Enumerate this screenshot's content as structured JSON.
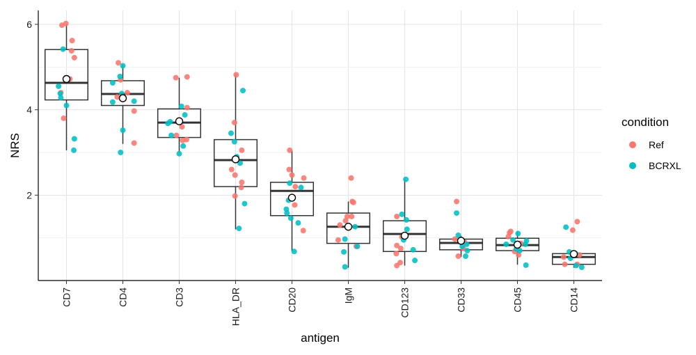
{
  "chart_data": {
    "type": "boxplot",
    "xlabel": "antigen",
    "ylabel": "NRS",
    "ylim": [
      0,
      6.2
    ],
    "yticks": [
      2,
      4,
      6
    ],
    "grid": true,
    "legend": {
      "title": "condition",
      "position": "right",
      "entries": [
        {
          "name": "Ref",
          "color": "#F8766D"
        },
        {
          "name": "BCRXL",
          "color": "#00BFC4"
        }
      ]
    },
    "categories": [
      "CD7",
      "CD4",
      "CD3",
      "HLA_DR",
      "CD20",
      "IgM",
      "CD123",
      "CD33",
      "CD45",
      "CD14"
    ],
    "boxes": [
      {
        "q1": 4.23,
        "median": 4.63,
        "q3": 5.41,
        "whisker_low": 3.05,
        "whisker_high": 6.0,
        "mean": 4.72
      },
      {
        "q1": 4.1,
        "median": 4.37,
        "q3": 4.68,
        "whisker_low": 3.2,
        "whisker_high": 5.05,
        "mean": 4.27
      },
      {
        "q1": 3.35,
        "median": 3.7,
        "q3": 4.02,
        "whisker_low": 3.0,
        "whisker_high": 4.75,
        "mean": 3.73
      },
      {
        "q1": 2.2,
        "median": 2.82,
        "q3": 3.3,
        "whisker_low": 1.2,
        "whisker_high": 4.82,
        "mean": 2.84
      },
      {
        "q1": 1.52,
        "median": 2.1,
        "q3": 2.3,
        "whisker_low": 0.68,
        "whisker_high": 3.05,
        "mean": 1.94
      },
      {
        "q1": 0.87,
        "median": 1.26,
        "q3": 1.58,
        "whisker_low": 0.3,
        "whisker_high": 1.85,
        "mean": 1.26
      },
      {
        "q1": 0.68,
        "median": 1.09,
        "q3": 1.4,
        "whisker_low": 0.35,
        "whisker_high": 2.37,
        "mean": 1.05
      },
      {
        "q1": 0.72,
        "median": 0.88,
        "q3": 0.97,
        "whisker_low": 0.55,
        "whisker_high": 1.05,
        "mean": 0.93
      },
      {
        "q1": 0.7,
        "median": 0.83,
        "q3": 0.99,
        "whisker_low": 0.37,
        "whisker_high": 1.15,
        "mean": 0.84
      },
      {
        "q1": 0.38,
        "median": 0.55,
        "q3": 0.63,
        "whisker_low": 0.3,
        "whisker_high": 0.7,
        "mean": 0.62
      }
    ],
    "points": [
      {
        "c": 0,
        "dx": -0.08,
        "y": 5.98,
        "g": "Ref"
      },
      {
        "c": 0,
        "dx": -0.01,
        "y": 6.02,
        "g": "Ref"
      },
      {
        "c": 0,
        "dx": 0.1,
        "y": 5.62,
        "g": "Ref"
      },
      {
        "c": 0,
        "dx": 0.09,
        "y": 5.38,
        "g": "Ref"
      },
      {
        "c": 0,
        "dx": 0.14,
        "y": 5.22,
        "g": "Ref"
      },
      {
        "c": 0,
        "dx": 0.06,
        "y": 4.72,
        "g": "Ref"
      },
      {
        "c": 0,
        "dx": -0.05,
        "y": 3.8,
        "g": "Ref"
      },
      {
        "c": 0,
        "dx": -0.1,
        "y": 4.4,
        "g": "Ref"
      },
      {
        "c": 0,
        "dx": -0.06,
        "y": 5.42,
        "g": "BCRXL"
      },
      {
        "c": 0,
        "dx": -0.14,
        "y": 4.55,
        "g": "BCRXL"
      },
      {
        "c": 0,
        "dx": -0.11,
        "y": 4.38,
        "g": "BCRXL"
      },
      {
        "c": 0,
        "dx": -0.1,
        "y": 4.28,
        "g": "BCRXL"
      },
      {
        "c": 0,
        "dx": 0.0,
        "y": 4.1,
        "g": "BCRXL"
      },
      {
        "c": 0,
        "dx": 0.14,
        "y": 3.32,
        "g": "BCRXL"
      },
      {
        "c": 0,
        "dx": 0.13,
        "y": 3.05,
        "g": "BCRXL"
      },
      {
        "c": 1,
        "dx": -0.08,
        "y": 5.1,
        "g": "Ref"
      },
      {
        "c": 1,
        "dx": -0.04,
        "y": 4.7,
        "g": "Ref"
      },
      {
        "c": 1,
        "dx": 0.08,
        "y": 4.4,
        "g": "Ref"
      },
      {
        "c": 1,
        "dx": -0.1,
        "y": 4.3,
        "g": "Ref"
      },
      {
        "c": 1,
        "dx": 0.2,
        "y": 3.97,
        "g": "Ref"
      },
      {
        "c": 1,
        "dx": 0.2,
        "y": 3.22,
        "g": "Ref"
      },
      {
        "c": 1,
        "dx": -0.05,
        "y": 4.78,
        "g": "BCRXL"
      },
      {
        "c": 1,
        "dx": 0.0,
        "y": 5.03,
        "g": "BCRXL"
      },
      {
        "c": 1,
        "dx": -0.18,
        "y": 4.63,
        "g": "BCRXL"
      },
      {
        "c": 1,
        "dx": -0.02,
        "y": 4.38,
        "g": "BCRXL"
      },
      {
        "c": 1,
        "dx": -0.18,
        "y": 4.18,
        "g": "BCRXL"
      },
      {
        "c": 1,
        "dx": 0.2,
        "y": 4.2,
        "g": "BCRXL"
      },
      {
        "c": 1,
        "dx": 0.0,
        "y": 3.52,
        "g": "BCRXL"
      },
      {
        "c": 1,
        "dx": -0.04,
        "y": 3.0,
        "g": "BCRXL"
      },
      {
        "c": 2,
        "dx": -0.06,
        "y": 4.75,
        "g": "Ref"
      },
      {
        "c": 2,
        "dx": 0.14,
        "y": 4.77,
        "g": "Ref"
      },
      {
        "c": 2,
        "dx": 0.14,
        "y": 4.05,
        "g": "Ref"
      },
      {
        "c": 2,
        "dx": 0.05,
        "y": 3.6,
        "g": "Ref"
      },
      {
        "c": 2,
        "dx": -0.05,
        "y": 3.4,
        "g": "Ref"
      },
      {
        "c": 2,
        "dx": 0.13,
        "y": 3.3,
        "g": "Ref"
      },
      {
        "c": 2,
        "dx": 0.06,
        "y": 3.28,
        "g": "Ref"
      },
      {
        "c": 2,
        "dx": 0.04,
        "y": 4.08,
        "g": "BCRXL"
      },
      {
        "c": 2,
        "dx": 0.1,
        "y": 3.88,
        "g": "BCRXL"
      },
      {
        "c": 2,
        "dx": -0.16,
        "y": 3.72,
        "g": "BCRXL"
      },
      {
        "c": 2,
        "dx": -0.2,
        "y": 3.68,
        "g": "BCRXL"
      },
      {
        "c": 2,
        "dx": -0.14,
        "y": 3.4,
        "g": "BCRXL"
      },
      {
        "c": 2,
        "dx": 0.07,
        "y": 3.15,
        "g": "BCRXL"
      },
      {
        "c": 2,
        "dx": 0.0,
        "y": 2.97,
        "g": "BCRXL"
      },
      {
        "c": 3,
        "dx": 0.01,
        "y": 4.82,
        "g": "Ref"
      },
      {
        "c": 3,
        "dx": -0.02,
        "y": 3.7,
        "g": "Ref"
      },
      {
        "c": 3,
        "dx": 0.11,
        "y": 3.05,
        "g": "Ref"
      },
      {
        "c": 3,
        "dx": 0.0,
        "y": 2.82,
        "g": "Ref"
      },
      {
        "c": 3,
        "dx": -0.07,
        "y": 2.6,
        "g": "Ref"
      },
      {
        "c": 3,
        "dx": -0.01,
        "y": 2.47,
        "g": "Ref"
      },
      {
        "c": 3,
        "dx": 0.11,
        "y": 2.3,
        "g": "Ref"
      },
      {
        "c": 3,
        "dx": 0.1,
        "y": 2.18,
        "g": "Ref"
      },
      {
        "c": 3,
        "dx": -0.01,
        "y": 1.98,
        "g": "Ref"
      },
      {
        "c": 3,
        "dx": 0.13,
        "y": 4.45,
        "g": "BCRXL"
      },
      {
        "c": 3,
        "dx": -0.08,
        "y": 3.45,
        "g": "BCRXL"
      },
      {
        "c": 3,
        "dx": -0.02,
        "y": 3.25,
        "g": "BCRXL"
      },
      {
        "c": 3,
        "dx": 0.02,
        "y": 2.9,
        "g": "BCRXL"
      },
      {
        "c": 3,
        "dx": 0.08,
        "y": 2.75,
        "g": "BCRXL"
      },
      {
        "c": 3,
        "dx": 0.16,
        "y": 1.8,
        "g": "BCRXL"
      },
      {
        "c": 3,
        "dx": 0.06,
        "y": 1.22,
        "g": "BCRXL"
      },
      {
        "c": 4,
        "dx": -0.04,
        "y": 3.05,
        "g": "Ref"
      },
      {
        "c": 4,
        "dx": -0.05,
        "y": 2.6,
        "g": "Ref"
      },
      {
        "c": 4,
        "dx": 0.0,
        "y": 2.47,
        "g": "Ref"
      },
      {
        "c": 4,
        "dx": 0.21,
        "y": 2.4,
        "g": "Ref"
      },
      {
        "c": 4,
        "dx": 0.06,
        "y": 2.2,
        "g": "Ref"
      },
      {
        "c": 4,
        "dx": 0.05,
        "y": 1.77,
        "g": "Ref"
      },
      {
        "c": 4,
        "dx": 0.2,
        "y": 1.17,
        "g": "Ref"
      },
      {
        "c": 4,
        "dx": -0.04,
        "y": 2.28,
        "g": "BCRXL"
      },
      {
        "c": 4,
        "dx": 0.16,
        "y": 2.18,
        "g": "BCRXL"
      },
      {
        "c": 4,
        "dx": -0.06,
        "y": 1.88,
        "g": "BCRXL"
      },
      {
        "c": 4,
        "dx": -0.1,
        "y": 1.67,
        "g": "BCRXL"
      },
      {
        "c": 4,
        "dx": -0.09,
        "y": 1.58,
        "g": "BCRXL"
      },
      {
        "c": 4,
        "dx": -0.02,
        "y": 1.46,
        "g": "BCRXL"
      },
      {
        "c": 4,
        "dx": 0.11,
        "y": 1.35,
        "g": "BCRXL"
      },
      {
        "c": 4,
        "dx": 0.04,
        "y": 0.68,
        "g": "BCRXL"
      },
      {
        "c": 5,
        "dx": 0.05,
        "y": 2.4,
        "g": "Ref"
      },
      {
        "c": 5,
        "dx": 0.07,
        "y": 1.85,
        "g": "Ref"
      },
      {
        "c": 5,
        "dx": 0.09,
        "y": 1.83,
        "g": "Ref"
      },
      {
        "c": 5,
        "dx": -0.02,
        "y": 1.5,
        "g": "Ref"
      },
      {
        "c": 5,
        "dx": 0.06,
        "y": 1.5,
        "g": "Ref"
      },
      {
        "c": 5,
        "dx": -0.05,
        "y": 1.4,
        "g": "Ref"
      },
      {
        "c": 5,
        "dx": -0.15,
        "y": 1.3,
        "g": "Ref"
      },
      {
        "c": 5,
        "dx": -0.18,
        "y": 0.95,
        "g": "Ref"
      },
      {
        "c": 5,
        "dx": 0.14,
        "y": 0.8,
        "g": "Ref"
      },
      {
        "c": 5,
        "dx": 0.12,
        "y": 1.26,
        "g": "BCRXL"
      },
      {
        "c": 5,
        "dx": -0.06,
        "y": 0.97,
        "g": "BCRXL"
      },
      {
        "c": 5,
        "dx": 0.16,
        "y": 0.8,
        "g": "BCRXL"
      },
      {
        "c": 5,
        "dx": -0.08,
        "y": 0.67,
        "g": "BCRXL"
      },
      {
        "c": 5,
        "dx": -0.06,
        "y": 0.32,
        "g": "BCRXL"
      },
      {
        "c": 6,
        "dx": -0.14,
        "y": 1.5,
        "g": "Ref"
      },
      {
        "c": 6,
        "dx": -0.05,
        "y": 1.02,
        "g": "Ref"
      },
      {
        "c": 6,
        "dx": -0.14,
        "y": 0.82,
        "g": "Ref"
      },
      {
        "c": 6,
        "dx": -0.07,
        "y": 0.75,
        "g": "Ref"
      },
      {
        "c": 6,
        "dx": -0.15,
        "y": 0.63,
        "g": "Ref"
      },
      {
        "c": 6,
        "dx": -0.08,
        "y": 0.42,
        "g": "Ref"
      },
      {
        "c": 6,
        "dx": -0.14,
        "y": 0.35,
        "g": "Ref"
      },
      {
        "c": 6,
        "dx": 0.02,
        "y": 2.37,
        "g": "BCRXL"
      },
      {
        "c": 6,
        "dx": -0.05,
        "y": 1.55,
        "g": "BCRXL"
      },
      {
        "c": 6,
        "dx": 0.03,
        "y": 1.42,
        "g": "BCRXL"
      },
      {
        "c": 6,
        "dx": 0.04,
        "y": 1.2,
        "g": "BCRXL"
      },
      {
        "c": 6,
        "dx": -0.02,
        "y": 0.95,
        "g": "BCRXL"
      },
      {
        "c": 6,
        "dx": 0.15,
        "y": 0.72,
        "g": "BCRXL"
      },
      {
        "c": 6,
        "dx": 0.18,
        "y": 0.47,
        "g": "BCRXL"
      },
      {
        "c": 7,
        "dx": -0.08,
        "y": 1.85,
        "g": "Ref"
      },
      {
        "c": 7,
        "dx": -0.11,
        "y": 0.97,
        "g": "Ref"
      },
      {
        "c": 7,
        "dx": 0.06,
        "y": 0.9,
        "g": "Ref"
      },
      {
        "c": 7,
        "dx": 0.04,
        "y": 0.75,
        "g": "Ref"
      },
      {
        "c": 7,
        "dx": -0.05,
        "y": 0.57,
        "g": "Ref"
      },
      {
        "c": 7,
        "dx": -0.08,
        "y": 1.58,
        "g": "BCRXL"
      },
      {
        "c": 7,
        "dx": -0.05,
        "y": 1.06,
        "g": "BCRXL"
      },
      {
        "c": 7,
        "dx": 0.02,
        "y": 0.93,
        "g": "BCRXL"
      },
      {
        "c": 7,
        "dx": 0.1,
        "y": 0.85,
        "g": "BCRXL"
      },
      {
        "c": 7,
        "dx": 0.02,
        "y": 0.8,
        "g": "BCRXL"
      },
      {
        "c": 7,
        "dx": 0.11,
        "y": 0.7,
        "g": "BCRXL"
      },
      {
        "c": 7,
        "dx": 0.08,
        "y": 0.57,
        "g": "BCRXL"
      },
      {
        "c": 8,
        "dx": -0.12,
        "y": 1.15,
        "g": "Ref"
      },
      {
        "c": 8,
        "dx": -0.14,
        "y": 1.12,
        "g": "Ref"
      },
      {
        "c": 8,
        "dx": -0.16,
        "y": 1.03,
        "g": "Ref"
      },
      {
        "c": 8,
        "dx": 0.06,
        "y": 0.87,
        "g": "Ref"
      },
      {
        "c": 8,
        "dx": -0.05,
        "y": 0.68,
        "g": "Ref"
      },
      {
        "c": 8,
        "dx": 0.02,
        "y": 0.6,
        "g": "Ref"
      },
      {
        "c": 8,
        "dx": 0.01,
        "y": 1.1,
        "g": "BCRXL"
      },
      {
        "c": 8,
        "dx": -0.08,
        "y": 0.95,
        "g": "BCRXL"
      },
      {
        "c": 8,
        "dx": 0.16,
        "y": 0.93,
        "g": "BCRXL"
      },
      {
        "c": 8,
        "dx": -0.2,
        "y": 0.85,
        "g": "BCRXL"
      },
      {
        "c": 8,
        "dx": 0.14,
        "y": 0.85,
        "g": "BCRXL"
      },
      {
        "c": 8,
        "dx": -0.02,
        "y": 0.74,
        "g": "BCRXL"
      },
      {
        "c": 8,
        "dx": 0.04,
        "y": 0.7,
        "g": "BCRXL"
      },
      {
        "c": 8,
        "dx": 0.15,
        "y": 0.36,
        "g": "BCRXL"
      },
      {
        "c": 9,
        "dx": 0.06,
        "y": 1.38,
        "g": "Ref"
      },
      {
        "c": 9,
        "dx": -0.02,
        "y": 1.18,
        "g": "Ref"
      },
      {
        "c": 9,
        "dx": -0.18,
        "y": 0.55,
        "g": "Ref"
      },
      {
        "c": 9,
        "dx": 0.1,
        "y": 0.6,
        "g": "Ref"
      },
      {
        "c": 9,
        "dx": -0.16,
        "y": 0.38,
        "g": "Ref"
      },
      {
        "c": 9,
        "dx": 0.06,
        "y": 0.38,
        "g": "Ref"
      },
      {
        "c": 9,
        "dx": -0.14,
        "y": 1.25,
        "g": "BCRXL"
      },
      {
        "c": 9,
        "dx": -0.08,
        "y": 0.67,
        "g": "BCRXL"
      },
      {
        "c": 9,
        "dx": 0.03,
        "y": 0.63,
        "g": "BCRXL"
      },
      {
        "c": 9,
        "dx": -0.06,
        "y": 0.52,
        "g": "BCRXL"
      },
      {
        "c": 9,
        "dx": 0.04,
        "y": 0.35,
        "g": "BCRXL"
      },
      {
        "c": 9,
        "dx": 0.14,
        "y": 0.31,
        "g": "BCRXL"
      }
    ]
  }
}
